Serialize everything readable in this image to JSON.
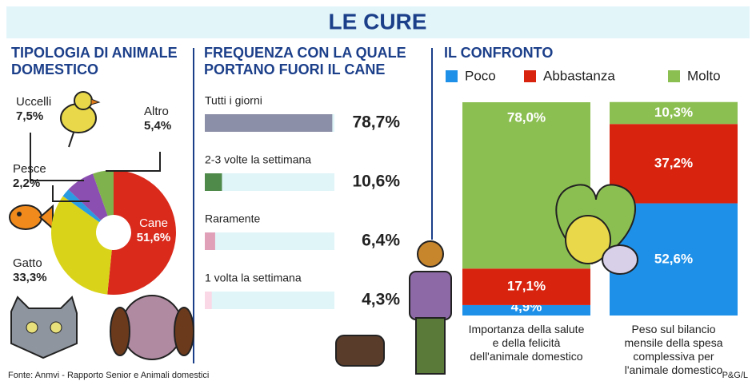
{
  "header": {
    "title": "LE CURE"
  },
  "footer": {
    "source": "Fonte: Anmvi - Rapporto Senior e Animali domestici",
    "credit": "P&G/L"
  },
  "chart_data": [
    {
      "type": "pie",
      "title": "TIPOLOGIA DI ANIMALE DOMESTICO",
      "categories": [
        "Cane",
        "Gatto",
        "Pesce",
        "Uccelli",
        "Altro"
      ],
      "values": [
        51.6,
        33.3,
        2.2,
        7.5,
        5.4
      ],
      "value_labels": [
        "51,6%",
        "33,3%",
        "2,2%",
        "7,5%",
        "5,4%"
      ],
      "colors": [
        "#d92a1c",
        "#d9d41a",
        "#2a9be0",
        "#8a4fb0",
        "#7fb24d"
      ]
    },
    {
      "type": "hbar",
      "title": "FREQUENZA CON LA QUALE PORTANO FUORI IL CANE",
      "categories": [
        "Tutti i giorni",
        "2-3 volte la settimana",
        "Raramente",
        "1 volta la settimana"
      ],
      "values": [
        78.7,
        10.6,
        6.4,
        4.3
      ],
      "value_labels": [
        "78,7%",
        "10,6%",
        "6,4%",
        "4,3%"
      ],
      "colors": [
        "#8c8fa8",
        "#4f8a4a",
        "#e0a0b8",
        "#fbd8e6"
      ],
      "xlim": [
        0,
        80
      ]
    },
    {
      "type": "stacked-bar",
      "title": "IL CONFRONTO",
      "categories": [
        "Importanza della salute e della felicità dell'animale domestico",
        "Peso sul bilancio mensile della spesa complessiva per l'animale domestico"
      ],
      "series": [
        {
          "name": "Poco",
          "color": "#1e90e8",
          "values": [
            4.9,
            52.6
          ],
          "value_labels": [
            "4,9%",
            "52,6%"
          ]
        },
        {
          "name": "Abbastanza",
          "color": "#d8230f",
          "values": [
            17.1,
            37.2
          ],
          "value_labels": [
            "17,1%",
            "37,2%"
          ]
        },
        {
          "name": "Molto",
          "color": "#8cbf52",
          "values": [
            78.0,
            10.3
          ],
          "value_labels": [
            "78,0%",
            "10,3%"
          ]
        }
      ],
      "ylim": [
        0,
        100
      ]
    }
  ]
}
